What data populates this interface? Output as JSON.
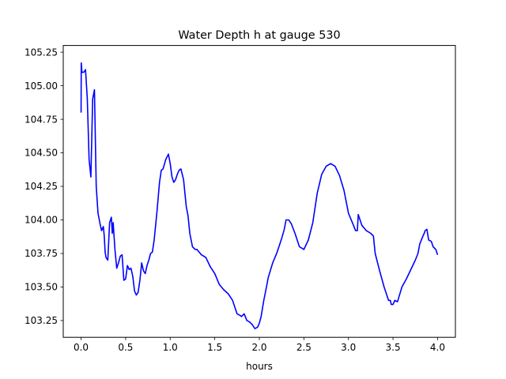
{
  "chart_data": {
    "type": "line",
    "title": "Water Depth h at gauge 530",
    "xlabel": "hours",
    "ylabel": "",
    "xlim": [
      -0.2,
      4.2
    ],
    "ylim": [
      103.125,
      105.3
    ],
    "xticks": [
      0.0,
      0.5,
      1.0,
      1.5,
      2.0,
      2.5,
      3.0,
      3.5,
      4.0
    ],
    "xtick_labels": [
      "0.0",
      "0.5",
      "1.0",
      "1.5",
      "2.0",
      "2.5",
      "3.0",
      "3.5",
      "4.0"
    ],
    "yticks": [
      103.25,
      103.5,
      103.75,
      104.0,
      104.25,
      104.5,
      104.75,
      105.0,
      105.25
    ],
    "ytick_labels": [
      "103.25",
      "103.50",
      "103.75",
      "104.00",
      "104.25",
      "104.50",
      "104.75",
      "105.00",
      "105.25"
    ],
    "grid": false,
    "series": [
      {
        "color": "#0000ff",
        "x": [
          0.0,
          0.002,
          0.01,
          0.03,
          0.05,
          0.07,
          0.09,
          0.11,
          0.13,
          0.15,
          0.17,
          0.19,
          0.21,
          0.23,
          0.25,
          0.26,
          0.27,
          0.28,
          0.29,
          0.3,
          0.32,
          0.34,
          0.35,
          0.36,
          0.37,
          0.38,
          0.4,
          0.42,
          0.44,
          0.46,
          0.48,
          0.5,
          0.52,
          0.54,
          0.56,
          0.58,
          0.6,
          0.62,
          0.64,
          0.66,
          0.68,
          0.7,
          0.72,
          0.74,
          0.76,
          0.78,
          0.8,
          0.82,
          0.85,
          0.88,
          0.9,
          0.92,
          0.95,
          0.98,
          1.0,
          1.02,
          1.04,
          1.06,
          1.08,
          1.1,
          1.12,
          1.15,
          1.18,
          1.2,
          1.22,
          1.25,
          1.28,
          1.3,
          1.35,
          1.4,
          1.45,
          1.5,
          1.55,
          1.6,
          1.65,
          1.7,
          1.75,
          1.78,
          1.8,
          1.83,
          1.86,
          1.89,
          1.92,
          1.95,
          1.98,
          2.0,
          2.02,
          2.05,
          2.08,
          2.1,
          2.15,
          2.2,
          2.25,
          2.28,
          2.3,
          2.33,
          2.36,
          2.4,
          2.45,
          2.5,
          2.55,
          2.6,
          2.65,
          2.7,
          2.75,
          2.8,
          2.85,
          2.9,
          2.95,
          3.0,
          3.05,
          3.08,
          3.1,
          3.11,
          3.13,
          3.15,
          3.2,
          3.25,
          3.28,
          3.3,
          3.35,
          3.4,
          3.43,
          3.45,
          3.47,
          3.48,
          3.5,
          3.52,
          3.55,
          3.6,
          3.65,
          3.7,
          3.75,
          3.78,
          3.8,
          3.83,
          3.85,
          3.86,
          3.88,
          3.9,
          3.93,
          3.95,
          3.98,
          4.0
        ],
        "y": [
          104.8,
          105.17,
          105.1,
          105.1,
          105.12,
          104.9,
          104.45,
          104.32,
          104.9,
          104.97,
          104.25,
          104.05,
          103.98,
          103.92,
          103.95,
          103.88,
          103.76,
          103.72,
          103.71,
          103.7,
          103.98,
          104.02,
          103.9,
          103.98,
          103.88,
          103.78,
          103.64,
          103.68,
          103.73,
          103.74,
          103.55,
          103.56,
          103.66,
          103.63,
          103.64,
          103.58,
          103.47,
          103.44,
          103.46,
          103.55,
          103.68,
          103.62,
          103.6,
          103.66,
          103.7,
          103.75,
          103.76,
          103.85,
          104.05,
          104.28,
          104.37,
          104.38,
          104.45,
          104.49,
          104.42,
          104.32,
          104.28,
          104.3,
          104.34,
          104.37,
          104.38,
          104.3,
          104.1,
          104.03,
          103.9,
          103.8,
          103.78,
          103.78,
          103.74,
          103.72,
          103.65,
          103.6,
          103.52,
          103.48,
          103.45,
          103.4,
          103.3,
          103.29,
          103.28,
          103.3,
          103.25,
          103.24,
          103.22,
          103.19,
          103.2,
          103.23,
          103.28,
          103.4,
          103.5,
          103.57,
          103.68,
          103.76,
          103.86,
          103.93,
          104.0,
          104.0,
          103.97,
          103.9,
          103.8,
          103.78,
          103.85,
          103.98,
          104.2,
          104.34,
          104.4,
          104.42,
          104.4,
          104.33,
          104.22,
          104.05,
          103.97,
          103.92,
          103.92,
          104.04,
          104.0,
          103.96,
          103.92,
          103.9,
          103.88,
          103.75,
          103.62,
          103.5,
          103.44,
          103.4,
          103.4,
          103.37,
          103.37,
          103.4,
          103.39,
          103.5,
          103.56,
          103.63,
          103.7,
          103.75,
          103.82,
          103.87,
          103.9,
          103.92,
          103.93,
          103.85,
          103.84,
          103.8,
          103.78,
          103.74
        ]
      }
    ]
  }
}
